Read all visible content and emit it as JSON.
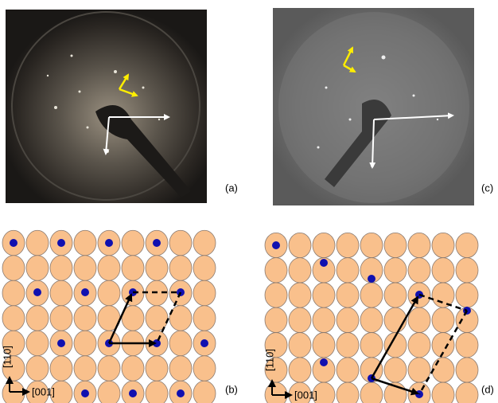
{
  "panels": [
    {
      "label": "(a)"
    },
    {
      "label": "(b)",
      "axis_vertical": "[110]",
      "axis_horizontal": "[001]"
    },
    {
      "label": "(c)"
    },
    {
      "label": "(d)",
      "axis_vertical": "[110]",
      "axis_horizontal": "[001]"
    }
  ]
}
